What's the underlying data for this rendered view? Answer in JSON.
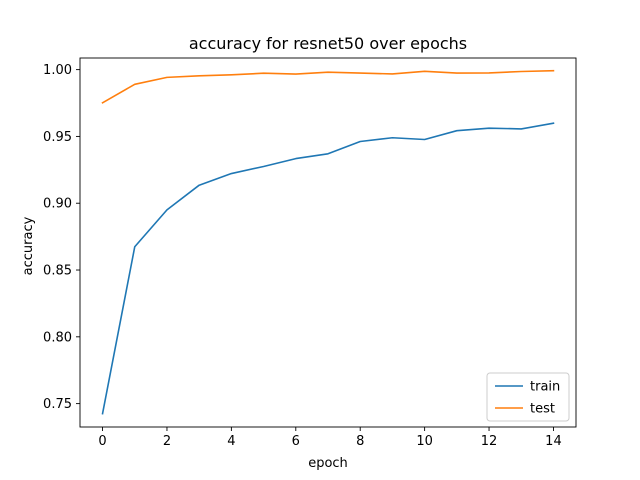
{
  "chart_data": {
    "type": "line",
    "title": "accuracy for resnet50 over epochs",
    "xlabel": "epoch",
    "ylabel": "accuracy",
    "x": [
      0,
      1,
      2,
      3,
      4,
      5,
      6,
      7,
      8,
      9,
      10,
      11,
      12,
      13,
      14
    ],
    "xlim": [
      -0.7,
      14.7
    ],
    "ylim": [
      0.7325,
      1.0087
    ],
    "xticks": [
      0,
      2,
      4,
      6,
      8,
      10,
      12,
      14
    ],
    "xtick_labels": [
      "0",
      "2",
      "4",
      "6",
      "8",
      "10",
      "12",
      "14"
    ],
    "yticks": [
      0.75,
      0.8,
      0.85,
      0.9,
      0.95,
      1.0
    ],
    "ytick_labels": [
      "0.75",
      "0.80",
      "0.85",
      "0.90",
      "0.95",
      "1.00"
    ],
    "grid": false,
    "legend_position": "bottom-right",
    "series": [
      {
        "name": "train",
        "color": "#1f77b4",
        "values": [
          0.7425,
          0.8674,
          0.895,
          0.9135,
          0.9222,
          0.9275,
          0.9334,
          0.937,
          0.9462,
          0.949,
          0.9477,
          0.9543,
          0.9562,
          0.9556,
          0.9599
        ]
      },
      {
        "name": "test",
        "color": "#ff7f0e",
        "values": [
          0.9752,
          0.989,
          0.9942,
          0.9954,
          0.9961,
          0.9973,
          0.9967,
          0.9981,
          0.9974,
          0.9968,
          0.9987,
          0.9974,
          0.9975,
          0.9986,
          0.9992
        ]
      }
    ]
  }
}
